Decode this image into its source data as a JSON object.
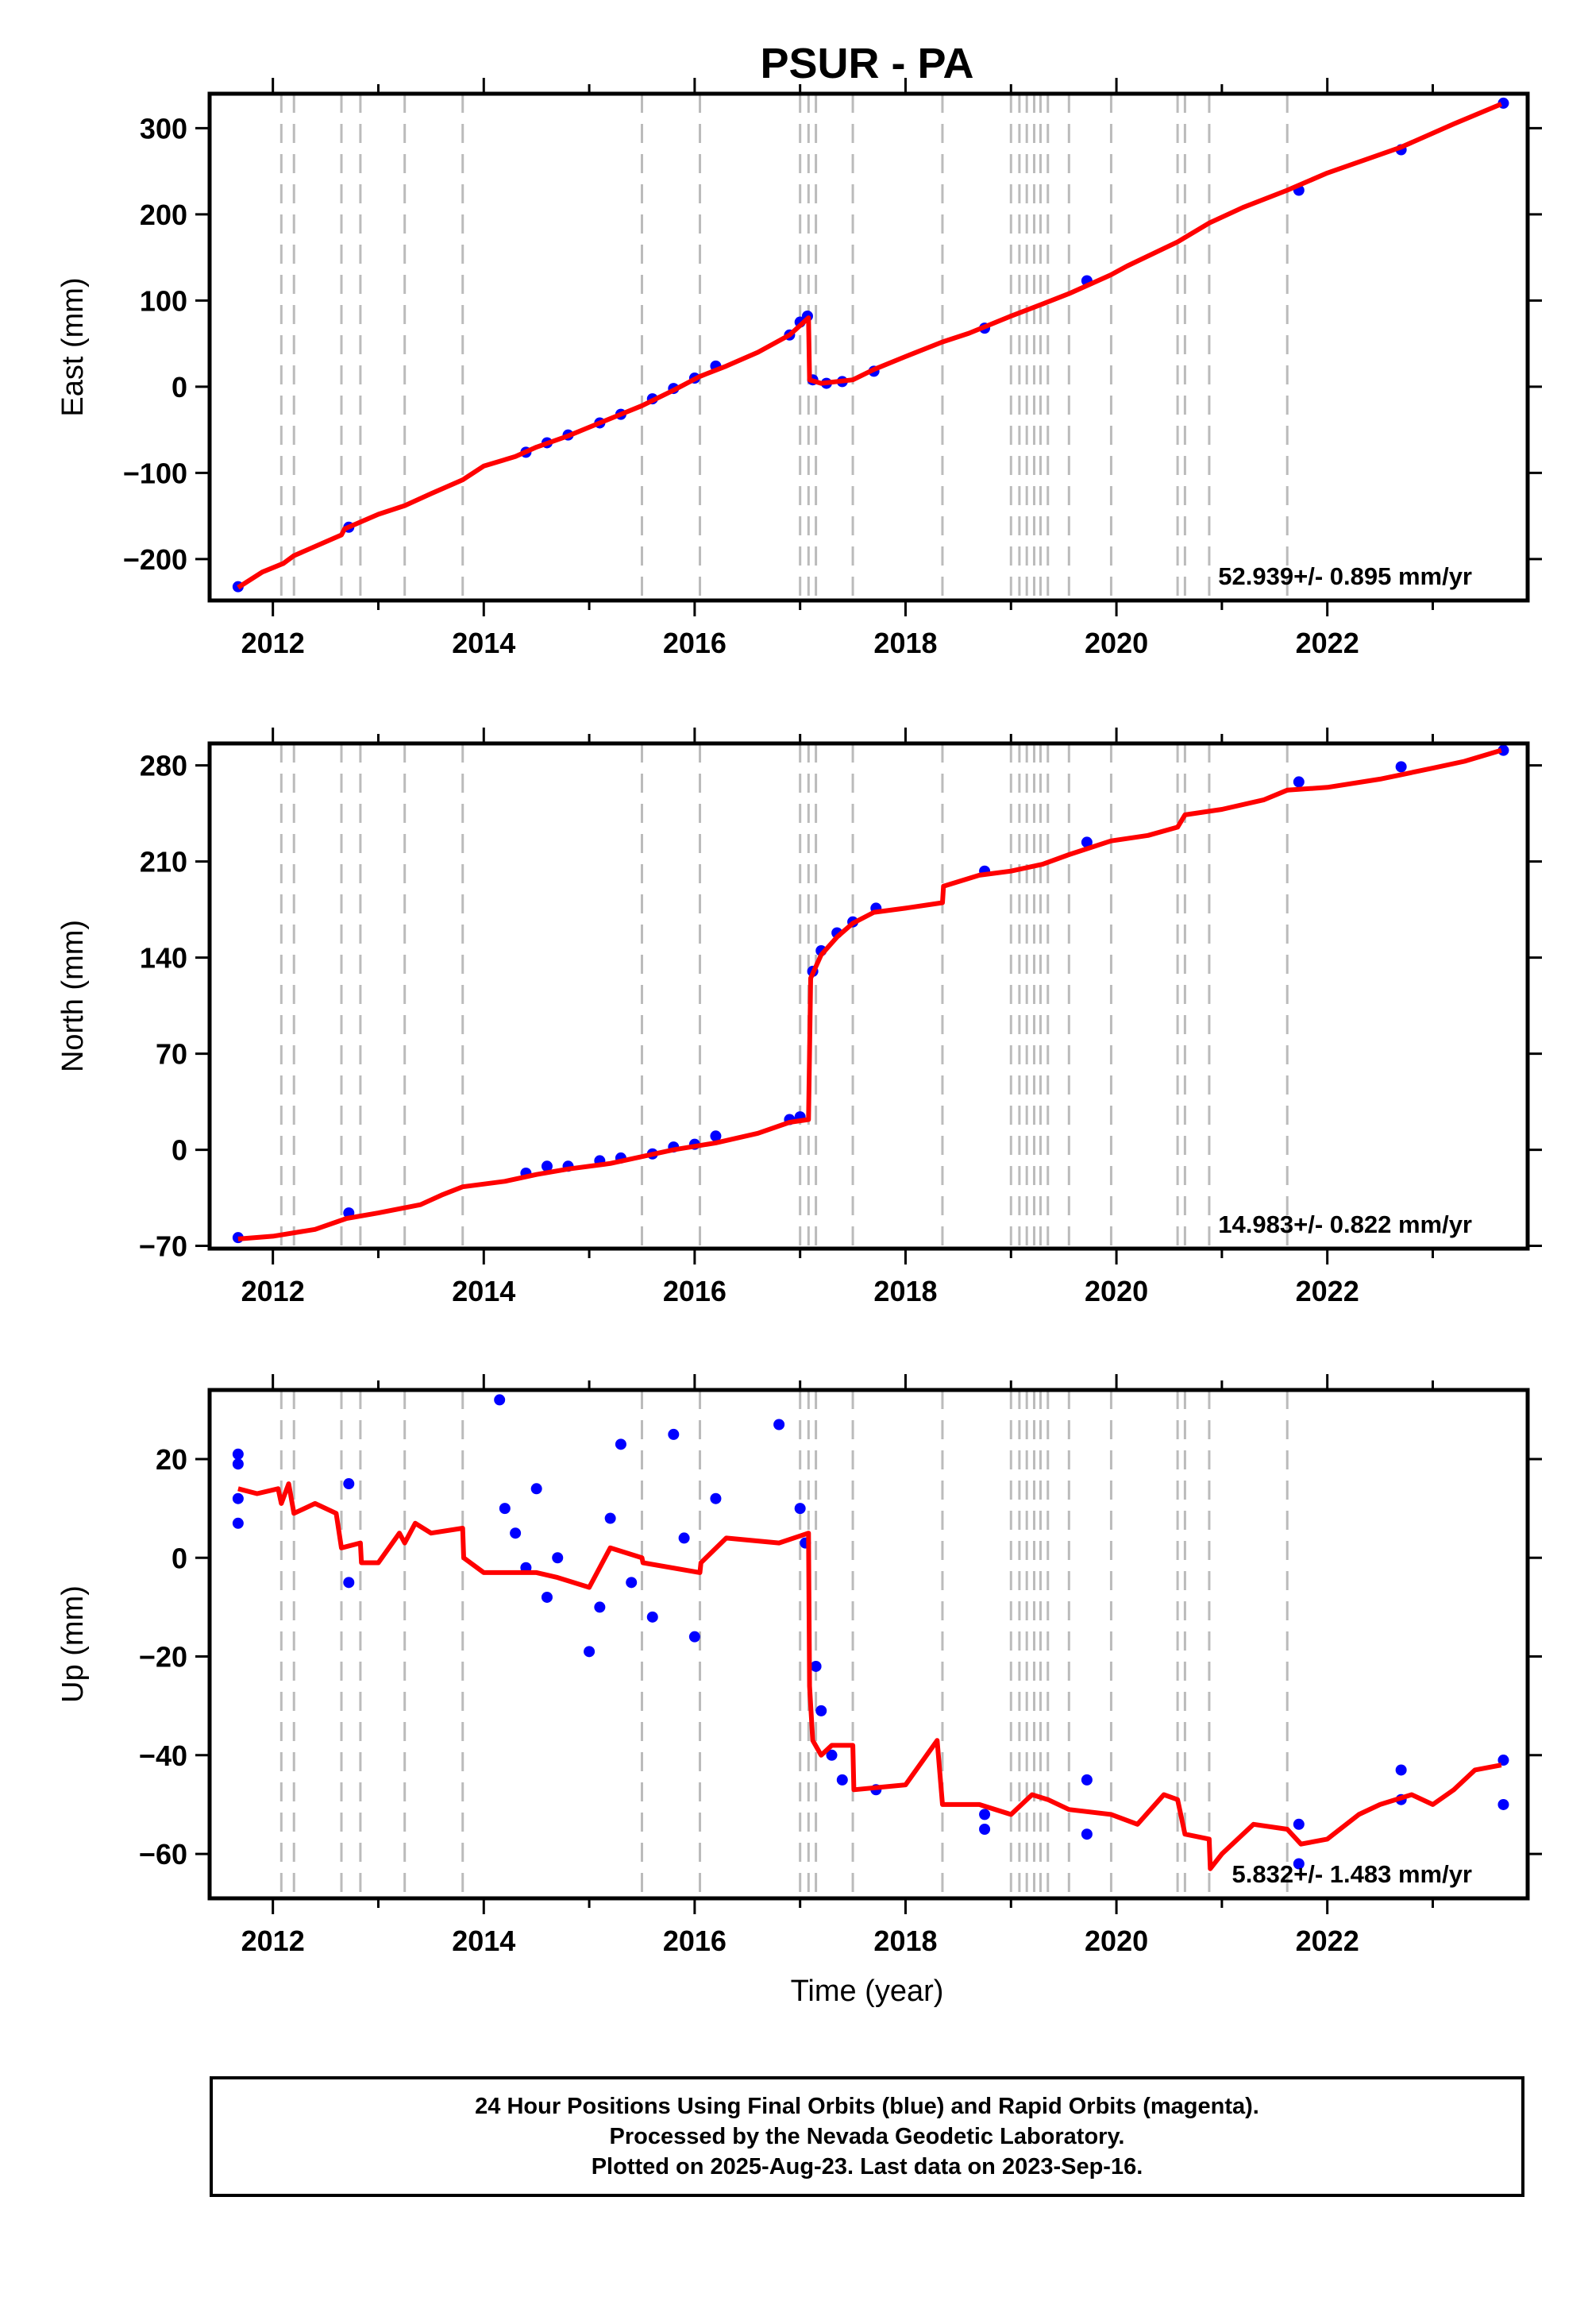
{
  "title": "PSUR - PA",
  "panels": [
    {
      "id": "east",
      "ylabel": "East (mm)",
      "rate": "52.939+/- 0.895 mm/yr",
      "yrange": [
        -248,
        340
      ],
      "yticks": [
        -200,
        -100,
        0,
        100,
        200,
        300
      ]
    },
    {
      "id": "north",
      "ylabel": "North (mm)",
      "rate": "14.983+/- 0.822 mm/yr",
      "yrange": [
        -72,
        296
      ],
      "yticks": [
        -70,
        0,
        70,
        140,
        210,
        280
      ]
    },
    {
      "id": "up",
      "ylabel": "Up (mm)",
      "rate": "5.832+/- 1.483 mm/yr",
      "yrange": [
        -69,
        34
      ],
      "yticks": [
        -60,
        -40,
        -20,
        0,
        20
      ]
    }
  ],
  "xlabel": "Time (year)",
  "xticks": [
    2012,
    2014,
    2016,
    2018,
    2020,
    2022
  ],
  "footer": [
    "24 Hour Positions Using Final Orbits (blue) and Rapid Orbits (magenta).",
    "Processed by the Nevada Geodetic Laboratory.",
    "Plotted on 2025-Aug-23. Last data on 2023-Sep-16."
  ],
  "colors": {
    "data": "#0000ff",
    "model": "#ff0000",
    "steps": "#bbbbbb"
  },
  "chart_data": {
    "type": "scatter",
    "xlim": [
      2011.4,
      2023.9
    ],
    "step_epochs": [
      2012.08,
      2012.2,
      2012.65,
      2012.83,
      2013.25,
      2013.8,
      2015.5,
      2016.05,
      2017.0,
      2017.08,
      2017.15,
      2017.5,
      2018.35,
      2019.0,
      2019.08,
      2019.15,
      2019.22,
      2019.28,
      2019.35,
      2019.55,
      2019.95,
      2020.58,
      2020.65,
      2020.88,
      2021.62
    ],
    "series": [
      {
        "name": "East",
        "model": [
          [
            2011.67,
            -233
          ],
          [
            2011.9,
            -215
          ],
          [
            2012.1,
            -205
          ],
          [
            2012.2,
            -196
          ],
          [
            2012.65,
            -172
          ],
          [
            2012.68,
            -165
          ],
          [
            2012.83,
            -157
          ],
          [
            2013.0,
            -148
          ],
          [
            2013.25,
            -138
          ],
          [
            2013.5,
            -124
          ],
          [
            2013.8,
            -108
          ],
          [
            2014.0,
            -92
          ],
          [
            2014.3,
            -81
          ],
          [
            2014.5,
            -70
          ],
          [
            2014.8,
            -57
          ],
          [
            2015.0,
            -47
          ],
          [
            2015.3,
            -32
          ],
          [
            2015.5,
            -22
          ],
          [
            2015.8,
            -4
          ],
          [
            2016.05,
            12
          ],
          [
            2016.3,
            24
          ],
          [
            2016.6,
            40
          ],
          [
            2016.9,
            60
          ],
          [
            2017.08,
            80
          ],
          [
            2017.09,
            8
          ],
          [
            2017.2,
            4
          ],
          [
            2017.5,
            8
          ],
          [
            2017.7,
            20
          ],
          [
            2018.0,
            35
          ],
          [
            2018.35,
            52
          ],
          [
            2018.6,
            62
          ],
          [
            2019.0,
            82
          ],
          [
            2019.3,
            96
          ],
          [
            2019.55,
            108
          ],
          [
            2019.95,
            130
          ],
          [
            2020.1,
            140
          ],
          [
            2020.58,
            168
          ],
          [
            2020.88,
            190
          ],
          [
            2021.2,
            208
          ],
          [
            2021.62,
            228
          ],
          [
            2022.0,
            248
          ],
          [
            2022.7,
            278
          ],
          [
            2023.2,
            305
          ],
          [
            2023.65,
            328
          ]
        ],
        "points": [
          [
            2011.67,
            -232
          ],
          [
            2012.72,
            -163
          ],
          [
            2014.4,
            -76
          ],
          [
            2014.6,
            -65
          ],
          [
            2014.8,
            -56
          ],
          [
            2015.1,
            -42
          ],
          [
            2015.3,
            -32
          ],
          [
            2015.6,
            -14
          ],
          [
            2015.8,
            -2
          ],
          [
            2016.0,
            10
          ],
          [
            2016.2,
            24
          ],
          [
            2016.9,
            60
          ],
          [
            2017.0,
            75
          ],
          [
            2017.07,
            82
          ],
          [
            2017.12,
            8
          ],
          [
            2017.25,
            4
          ],
          [
            2017.4,
            6
          ],
          [
            2017.7,
            18
          ],
          [
            2018.75,
            68
          ],
          [
            2019.72,
            123
          ],
          [
            2021.73,
            228
          ],
          [
            2022.7,
            275
          ],
          [
            2023.67,
            329
          ]
        ]
      },
      {
        "name": "North",
        "model": [
          [
            2011.67,
            -65
          ],
          [
            2012.0,
            -63
          ],
          [
            2012.4,
            -58
          ],
          [
            2012.7,
            -50
          ],
          [
            2013.0,
            -46
          ],
          [
            2013.4,
            -40
          ],
          [
            2013.6,
            -33
          ],
          [
            2013.8,
            -27
          ],
          [
            2014.2,
            -23
          ],
          [
            2014.5,
            -18
          ],
          [
            2014.8,
            -14
          ],
          [
            2015.2,
            -10
          ],
          [
            2015.5,
            -5
          ],
          [
            2015.8,
            0
          ],
          [
            2016.2,
            5
          ],
          [
            2016.6,
            12
          ],
          [
            2016.9,
            20
          ],
          [
            2017.08,
            22
          ],
          [
            2017.1,
            125
          ],
          [
            2017.2,
            142
          ],
          [
            2017.35,
            155
          ],
          [
            2017.5,
            165
          ],
          [
            2017.7,
            173
          ],
          [
            2018.0,
            176
          ],
          [
            2018.35,
            180
          ],
          [
            2018.36,
            192
          ],
          [
            2018.7,
            200
          ],
          [
            2019.0,
            203
          ],
          [
            2019.3,
            208
          ],
          [
            2019.55,
            215
          ],
          [
            2019.95,
            225
          ],
          [
            2020.3,
            229
          ],
          [
            2020.58,
            235
          ],
          [
            2020.65,
            244
          ],
          [
            2021.0,
            248
          ],
          [
            2021.4,
            255
          ],
          [
            2021.62,
            262
          ],
          [
            2022.0,
            264
          ],
          [
            2022.5,
            270
          ],
          [
            2023.0,
            278
          ],
          [
            2023.3,
            283
          ],
          [
            2023.65,
            291
          ]
        ],
        "points": [
          [
            2011.67,
            -64
          ],
          [
            2012.72,
            -46
          ],
          [
            2014.4,
            -17
          ],
          [
            2014.6,
            -12
          ],
          [
            2014.8,
            -12
          ],
          [
            2015.1,
            -8
          ],
          [
            2015.3,
            -6
          ],
          [
            2015.6,
            -3
          ],
          [
            2015.8,
            2
          ],
          [
            2016.0,
            4
          ],
          [
            2016.2,
            10
          ],
          [
            2016.9,
            22
          ],
          [
            2017.0,
            24
          ],
          [
            2017.12,
            130
          ],
          [
            2017.2,
            145
          ],
          [
            2017.35,
            158
          ],
          [
            2017.5,
            166
          ],
          [
            2017.72,
            176
          ],
          [
            2018.75,
            203
          ],
          [
            2019.72,
            224
          ],
          [
            2021.73,
            268
          ],
          [
            2022.7,
            279
          ],
          [
            2023.67,
            291
          ]
        ]
      },
      {
        "name": "Up",
        "model": [
          [
            2011.67,
            14
          ],
          [
            2011.85,
            13
          ],
          [
            2012.05,
            14
          ],
          [
            2012.08,
            11
          ],
          [
            2012.15,
            15
          ],
          [
            2012.2,
            9
          ],
          [
            2012.4,
            11
          ],
          [
            2012.6,
            9
          ],
          [
            2012.65,
            2
          ],
          [
            2012.83,
            3
          ],
          [
            2012.84,
            -1
          ],
          [
            2013.0,
            -1
          ],
          [
            2013.2,
            5
          ],
          [
            2013.25,
            3
          ],
          [
            2013.35,
            7
          ],
          [
            2013.5,
            5
          ],
          [
            2013.8,
            6
          ],
          [
            2013.81,
            0
          ],
          [
            2014.0,
            -3
          ],
          [
            2014.2,
            -3
          ],
          [
            2014.5,
            -3
          ],
          [
            2014.7,
            -4
          ],
          [
            2015.0,
            -6
          ],
          [
            2015.2,
            2
          ],
          [
            2015.5,
            0
          ],
          [
            2015.51,
            -1
          ],
          [
            2016.05,
            -3
          ],
          [
            2016.06,
            -1
          ],
          [
            2016.3,
            4
          ],
          [
            2016.8,
            3
          ],
          [
            2017.08,
            5
          ],
          [
            2017.09,
            -26
          ],
          [
            2017.12,
            -37
          ],
          [
            2017.2,
            -40
          ],
          [
            2017.3,
            -38
          ],
          [
            2017.5,
            -38
          ],
          [
            2017.51,
            -47
          ],
          [
            2018.0,
            -46
          ],
          [
            2018.3,
            -37
          ],
          [
            2018.35,
            -50
          ],
          [
            2018.7,
            -50
          ],
          [
            2019.0,
            -52
          ],
          [
            2019.2,
            -48
          ],
          [
            2019.35,
            -49
          ],
          [
            2019.55,
            -51
          ],
          [
            2019.95,
            -52
          ],
          [
            2020.2,
            -54
          ],
          [
            2020.45,
            -48
          ],
          [
            2020.58,
            -49
          ],
          [
            2020.65,
            -56
          ],
          [
            2020.88,
            -57
          ],
          [
            2020.89,
            -63
          ],
          [
            2021.0,
            -60
          ],
          [
            2021.3,
            -54
          ],
          [
            2021.62,
            -55
          ],
          [
            2021.75,
            -58
          ],
          [
            2022.0,
            -57
          ],
          [
            2022.3,
            -52
          ],
          [
            2022.5,
            -50
          ],
          [
            2022.8,
            -48
          ],
          [
            2023.0,
            -50
          ],
          [
            2023.2,
            -47
          ],
          [
            2023.4,
            -43
          ],
          [
            2023.65,
            -42
          ]
        ],
        "points": [
          [
            2011.67,
            21
          ],
          [
            2011.67,
            19
          ],
          [
            2011.67,
            12
          ],
          [
            2011.67,
            7
          ],
          [
            2012.72,
            15
          ],
          [
            2012.72,
            -5
          ],
          [
            2014.15,
            32
          ],
          [
            2014.2,
            10
          ],
          [
            2014.3,
            5
          ],
          [
            2014.4,
            -2
          ],
          [
            2014.5,
            14
          ],
          [
            2014.6,
            -8
          ],
          [
            2014.7,
            0
          ],
          [
            2015.0,
            -19
          ],
          [
            2015.1,
            -10
          ],
          [
            2015.2,
            8
          ],
          [
            2015.3,
            23
          ],
          [
            2015.4,
            -5
          ],
          [
            2015.6,
            -12
          ],
          [
            2015.8,
            25
          ],
          [
            2015.9,
            4
          ],
          [
            2016.0,
            -16
          ],
          [
            2016.2,
            12
          ],
          [
            2016.8,
            27
          ],
          [
            2017.0,
            10
          ],
          [
            2017.05,
            3
          ],
          [
            2017.15,
            -22
          ],
          [
            2017.2,
            -31
          ],
          [
            2017.3,
            -40
          ],
          [
            2017.4,
            -45
          ],
          [
            2017.72,
            -47
          ],
          [
            2018.75,
            -52
          ],
          [
            2018.75,
            -55
          ],
          [
            2019.72,
            -45
          ],
          [
            2019.72,
            -56
          ],
          [
            2021.73,
            -54
          ],
          [
            2021.73,
            -62
          ],
          [
            2022.7,
            -43
          ],
          [
            2022.7,
            -49
          ],
          [
            2023.67,
            -41
          ],
          [
            2023.67,
            -50
          ]
        ]
      }
    ]
  }
}
